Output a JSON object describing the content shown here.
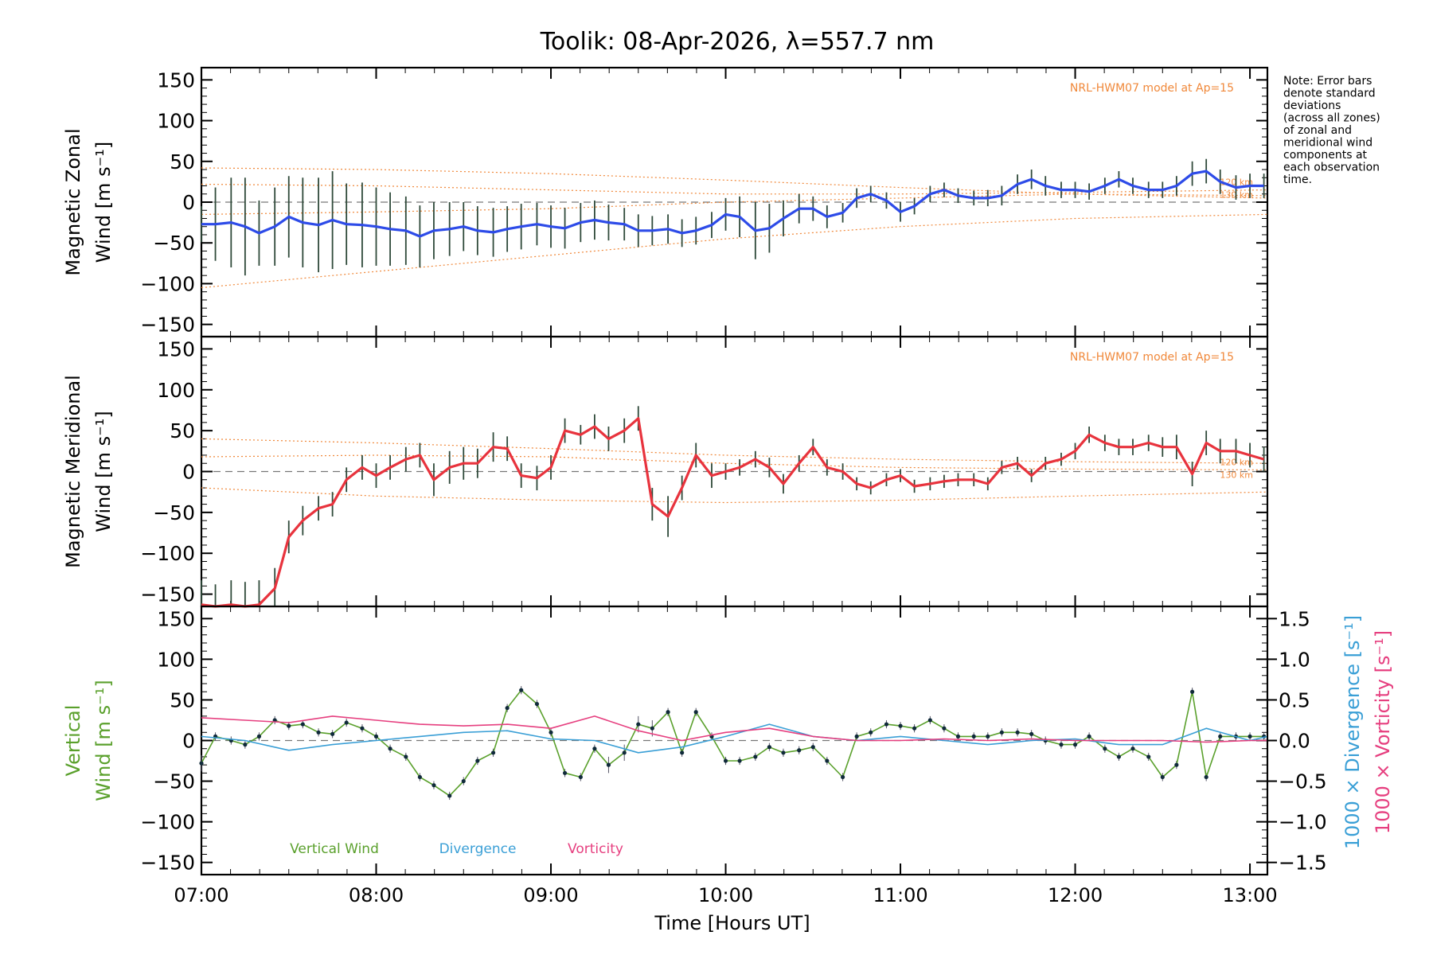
{
  "chart_data": [
    {
      "type": "line",
      "figure_title": "Toolik: 08-Apr-2026, λ=557.7 nm",
      "note": [
        "Note: Error bars",
        "denote standard",
        "deviations",
        "(across all zones)",
        "of zonal and",
        "meridional wind",
        "components at",
        "each observation",
        "time."
      ],
      "panel": "zonal",
      "ylabel": [
        "Magnetic Zonal",
        "Wind [m s⁻¹]"
      ],
      "ylim": [
        -165,
        165
      ],
      "yticks": [
        150,
        100,
        50,
        0,
        -50,
        -100,
        -150
      ],
      "xlim": [
        7.0,
        13.1
      ],
      "model_label": "NRL-HWM07 model at Ap=15",
      "model_height_labels": [
        "120 km",
        "130 km"
      ],
      "series": [
        {
          "name": "Mean zonal wind",
          "color": "#2d4be8",
          "x": [
            7.0,
            7.08,
            7.17,
            7.25,
            7.33,
            7.42,
            7.5,
            7.58,
            7.67,
            7.75,
            7.83,
            7.92,
            8.0,
            8.08,
            8.17,
            8.25,
            8.33,
            8.42,
            8.5,
            8.58,
            8.67,
            8.75,
            8.83,
            8.92,
            9.0,
            9.08,
            9.17,
            9.25,
            9.33,
            9.42,
            9.5,
            9.58,
            9.67,
            9.75,
            9.83,
            9.92,
            10.0,
            10.08,
            10.17,
            10.25,
            10.33,
            10.42,
            10.5,
            10.58,
            10.67,
            10.75,
            10.83,
            10.92,
            11.0,
            11.08,
            11.17,
            11.25,
            11.33,
            11.42,
            11.5,
            11.58,
            11.67,
            11.75,
            11.83,
            11.92,
            12.0,
            12.08,
            12.17,
            12.25,
            12.33,
            12.42,
            12.5,
            12.58,
            12.67,
            12.75,
            12.83,
            12.92,
            13.0,
            13.08
          ],
          "values": [
            -27,
            -27,
            -25,
            -30,
            -38,
            -30,
            -18,
            -25,
            -28,
            -22,
            -27,
            -28,
            -30,
            -33,
            -35,
            -42,
            -35,
            -33,
            -30,
            -35,
            -37,
            -33,
            -30,
            -27,
            -30,
            -32,
            -25,
            -22,
            -25,
            -27,
            -35,
            -35,
            -33,
            -38,
            -35,
            -28,
            -15,
            -18,
            -35,
            -32,
            -20,
            -8,
            -8,
            -18,
            -13,
            5,
            10,
            2,
            -12,
            -5,
            10,
            15,
            8,
            5,
            5,
            8,
            22,
            28,
            20,
            15,
            15,
            13,
            20,
            28,
            20,
            15,
            15,
            20,
            35,
            38,
            25,
            18,
            20,
            20
          ],
          "errors": [
            22,
            45,
            55,
            60,
            40,
            48,
            50,
            55,
            58,
            60,
            50,
            52,
            48,
            45,
            42,
            38,
            35,
            33,
            30,
            30,
            30,
            28,
            28,
            26,
            26,
            25,
            24,
            24,
            22,
            20,
            20,
            18,
            18,
            17,
            17,
            16,
            20,
            25,
            35,
            30,
            22,
            18,
            15,
            14,
            12,
            12,
            10,
            10,
            12,
            10,
            10,
            9,
            9,
            9,
            10,
            12,
            12,
            12,
            12,
            10,
            10,
            10,
            10,
            10,
            10,
            10,
            10,
            12,
            15,
            15,
            15,
            15,
            15,
            15
          ]
        }
      ],
      "model_curves": [
        {
          "x": [
            7.0,
            8.0,
            9.0,
            10.0,
            11.0,
            12.0,
            13.1
          ],
          "values": [
            42,
            40,
            35,
            27,
            18,
            10,
            5
          ]
        },
        {
          "x": [
            7.0,
            8.0,
            9.0,
            10.0,
            11.0,
            12.0,
            13.1
          ],
          "values": [
            22,
            20,
            15,
            10,
            10,
            12,
            15
          ]
        },
        {
          "x": [
            7.0,
            8.0,
            9.0,
            10.0,
            11.0,
            12.0,
            13.1
          ],
          "values": [
            -15,
            -12,
            -8,
            0,
            5,
            10,
            8
          ]
        },
        {
          "x": [
            7.0,
            8.0,
            9.0,
            10.0,
            11.0,
            12.0,
            13.1
          ],
          "values": [
            -105,
            -85,
            -65,
            -45,
            -30,
            -20,
            -15
          ]
        }
      ]
    },
    {
      "type": "line",
      "panel": "meridional",
      "ylabel": [
        "Magnetic Meridional",
        "Wind [m s⁻¹]"
      ],
      "ylim": [
        -165,
        165
      ],
      "yticks": [
        150,
        100,
        50,
        0,
        -50,
        -100,
        -150
      ],
      "xlim": [
        7.0,
        13.1
      ],
      "model_label": "NRL-HWM07 model at Ap=15",
      "model_height_labels": [
        "120 km",
        "130 km"
      ],
      "series": [
        {
          "name": "Mean meridional wind",
          "color": "#e8333d",
          "x": [
            7.0,
            7.08,
            7.17,
            7.25,
            7.33,
            7.42,
            7.5,
            7.58,
            7.67,
            7.75,
            7.83,
            7.92,
            8.0,
            8.08,
            8.17,
            8.25,
            8.33,
            8.42,
            8.5,
            8.58,
            8.67,
            8.75,
            8.83,
            8.92,
            9.0,
            9.08,
            9.17,
            9.25,
            9.33,
            9.42,
            9.5,
            9.58,
            9.67,
            9.75,
            9.83,
            9.92,
            10.0,
            10.08,
            10.17,
            10.25,
            10.33,
            10.42,
            10.5,
            10.58,
            10.67,
            10.75,
            10.83,
            10.92,
            11.0,
            11.08,
            11.17,
            11.25,
            11.33,
            11.42,
            11.5,
            11.58,
            11.67,
            11.75,
            11.83,
            11.92,
            12.0,
            12.08,
            12.17,
            12.25,
            12.33,
            12.42,
            12.5,
            12.58,
            12.67,
            12.75,
            12.83,
            12.92,
            13.0,
            13.08
          ],
          "values": [
            -163,
            -168,
            -163,
            -165,
            -163,
            -143,
            -80,
            -60,
            -45,
            -40,
            -10,
            5,
            -5,
            5,
            15,
            20,
            -10,
            5,
            10,
            10,
            30,
            28,
            -5,
            -8,
            5,
            50,
            45,
            55,
            40,
            50,
            65,
            -40,
            -55,
            -20,
            20,
            -5,
            0,
            5,
            15,
            5,
            -15,
            10,
            30,
            5,
            0,
            -15,
            -20,
            -10,
            -5,
            -18,
            -15,
            -12,
            -10,
            -10,
            -15,
            5,
            10,
            -5,
            10,
            15,
            25,
            45,
            35,
            30,
            30,
            35,
            30,
            30,
            -3,
            35,
            25,
            25,
            20,
            15
          ],
          "errors": [
            30,
            30,
            30,
            30,
            30,
            25,
            20,
            18,
            15,
            15,
            15,
            15,
            15,
            15,
            15,
            15,
            20,
            20,
            20,
            18,
            18,
            15,
            15,
            15,
            15,
            15,
            12,
            15,
            15,
            15,
            15,
            20,
            25,
            15,
            15,
            15,
            10,
            10,
            10,
            12,
            12,
            10,
            10,
            10,
            10,
            8,
            8,
            8,
            8,
            8,
            8,
            8,
            8,
            8,
            8,
            8,
            8,
            8,
            8,
            8,
            10,
            10,
            10,
            10,
            10,
            10,
            12,
            15,
            15,
            15,
            15,
            15,
            15,
            15
          ]
        }
      ],
      "model_curves": [
        {
          "x": [
            7.0,
            8.0,
            9.0,
            10.0,
            11.0,
            12.0,
            13.1
          ],
          "values": [
            40,
            35,
            28,
            20,
            15,
            12,
            10
          ]
        },
        {
          "x": [
            7.0,
            8.0,
            9.0,
            10.0,
            11.0,
            12.0,
            13.1
          ],
          "values": [
            18,
            20,
            18,
            10,
            5,
            3,
            2
          ]
        },
        {
          "x": [
            7.0,
            8.0,
            9.0,
            10.0,
            11.0,
            12.0,
            13.1
          ],
          "values": [
            -20,
            -30,
            -35,
            -38,
            -35,
            -30,
            -25
          ]
        }
      ]
    },
    {
      "type": "line",
      "panel": "vertical",
      "ylabel_left": [
        "Vertical",
        "Wind [m s⁻¹]"
      ],
      "ylabel_right_1": "1000 × Divergence [s⁻¹]",
      "ylabel_right_2": "1000 × Vorticity [s⁻¹]",
      "ylim": [
        -165,
        165
      ],
      "yticks": [
        150,
        100,
        50,
        0,
        -50,
        -100,
        -150
      ],
      "ylim_right": [
        -1.65,
        1.65
      ],
      "yticks_right": [
        "1.5",
        "1.0",
        "0.5",
        "0.0",
        "-0.5",
        "-1.0",
        "-1.5"
      ],
      "xlim": [
        7.0,
        13.1
      ],
      "xlabel": "Time [Hours UT]",
      "xticks": [
        "07:00",
        "08:00",
        "09:00",
        "10:00",
        "11:00",
        "12:00",
        "13:00"
      ],
      "legend": [
        "Vertical Wind",
        "Divergence",
        "Vorticity"
      ],
      "series": [
        {
          "name": "Vertical Wind",
          "color": "#5aa02c",
          "x": [
            7.0,
            7.08,
            7.17,
            7.25,
            7.33,
            7.42,
            7.5,
            7.58,
            7.67,
            7.75,
            7.83,
            7.92,
            8.0,
            8.08,
            8.17,
            8.25,
            8.33,
            8.42,
            8.5,
            8.58,
            8.67,
            8.75,
            8.83,
            8.92,
            9.0,
            9.08,
            9.17,
            9.25,
            9.33,
            9.42,
            9.5,
            9.58,
            9.67,
            9.75,
            9.83,
            9.92,
            10.0,
            10.08,
            10.17,
            10.25,
            10.33,
            10.42,
            10.5,
            10.58,
            10.67,
            10.75,
            10.83,
            10.92,
            11.0,
            11.08,
            11.17,
            11.25,
            11.33,
            11.42,
            11.5,
            11.58,
            11.67,
            11.75,
            11.83,
            11.92,
            12.0,
            12.08,
            12.17,
            12.25,
            12.33,
            12.42,
            12.5,
            12.58,
            12.67,
            12.75,
            12.83,
            12.92,
            13.0,
            13.08
          ],
          "values": [
            -28,
            5,
            0,
            -5,
            5,
            25,
            18,
            20,
            10,
            8,
            22,
            15,
            5,
            -10,
            -20,
            -45,
            -55,
            -68,
            -50,
            -25,
            -15,
            40,
            62,
            45,
            10,
            -40,
            -45,
            -10,
            -30,
            -15,
            20,
            15,
            35,
            -15,
            35,
            5,
            -25,
            -25,
            -20,
            -8,
            -15,
            -12,
            -8,
            -25,
            -45,
            5,
            10,
            20,
            18,
            15,
            25,
            15,
            5,
            5,
            5,
            10,
            10,
            8,
            0,
            -5,
            -5,
            5,
            -10,
            -20,
            -10,
            -20,
            -45,
            -30,
            60,
            -45,
            5,
            5,
            5,
            5
          ],
          "errors": [
            10,
            5,
            5,
            5,
            5,
            5,
            5,
            5,
            5,
            5,
            5,
            5,
            5,
            5,
            5,
            5,
            5,
            5,
            5,
            5,
            5,
            5,
            5,
            5,
            5,
            5,
            5,
            5,
            10,
            10,
            10,
            10,
            5,
            5,
            5,
            5,
            5,
            5,
            5,
            5,
            5,
            5,
            5,
            5,
            5,
            5,
            5,
            5,
            5,
            5,
            5,
            5,
            5,
            5,
            5,
            5,
            5,
            5,
            5,
            5,
            5,
            5,
            5,
            5,
            5,
            5,
            5,
            5,
            5,
            5,
            5,
            5,
            5,
            5
          ]
        },
        {
          "name": "Divergence",
          "color": "#3a9fd6",
          "axis": "right",
          "x": [
            7.0,
            7.25,
            7.5,
            7.75,
            8.0,
            8.25,
            8.5,
            8.75,
            9.0,
            9.25,
            9.5,
            9.75,
            10.0,
            10.25,
            10.5,
            10.75,
            11.0,
            11.25,
            11.5,
            11.75,
            12.0,
            12.25,
            12.5,
            12.75,
            13.0,
            13.1
          ],
          "values": [
            0.05,
            0.0,
            -0.12,
            -0.05,
            0.0,
            0.05,
            0.1,
            0.12,
            0.02,
            0.0,
            -0.15,
            -0.08,
            0.05,
            0.2,
            0.05,
            0.0,
            0.05,
            0.0,
            -0.05,
            0.0,
            0.02,
            -0.05,
            -0.05,
            0.15,
            0.0,
            0.05
          ]
        },
        {
          "name": "Vorticity",
          "color": "#e63f7f",
          "axis": "right",
          "x": [
            7.0,
            7.25,
            7.5,
            7.75,
            8.0,
            8.25,
            8.5,
            8.75,
            9.0,
            9.25,
            9.5,
            9.75,
            10.0,
            10.25,
            10.5,
            10.75,
            11.0,
            11.25,
            11.5,
            11.75,
            12.0,
            12.25,
            12.5,
            12.75,
            13.0,
            13.1
          ],
          "values": [
            0.28,
            0.25,
            0.22,
            0.3,
            0.25,
            0.2,
            0.18,
            0.2,
            0.15,
            0.3,
            0.12,
            0.0,
            0.1,
            0.15,
            0.05,
            0.0,
            0.0,
            0.02,
            0.0,
            0.02,
            0.0,
            0.0,
            0.0,
            -0.02,
            0.0,
            0.0
          ]
        }
      ]
    }
  ]
}
